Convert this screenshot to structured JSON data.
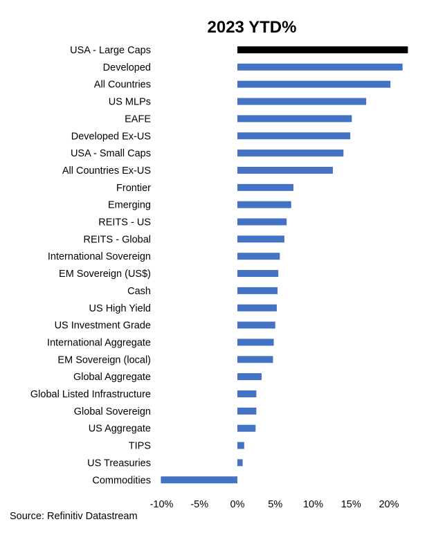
{
  "chart_data": {
    "type": "bar",
    "orientation": "horizontal",
    "title": "2023 YTD%",
    "categories": [
      "USA - Large Caps",
      "Developed",
      "All Countries",
      "US MLPs",
      "EAFE",
      "Developed Ex-US",
      "USA - Small Caps",
      "All Countries Ex-US",
      "Frontier",
      "Emerging",
      "REITS - US",
      "REITS - Global",
      "International Sovereign",
      "EM Sovereign (US$)",
      "Cash",
      "US High Yield",
      "US Investment Grade",
      "International Aggregate",
      "EM Sovereign (local)",
      "Global Aggregate",
      "Global Listed Infrastructure",
      "Global Sovereign",
      "US Aggregate",
      "TIPS",
      "US Treasuries",
      "Commodities"
    ],
    "values": [
      22.5,
      21.8,
      20.2,
      17.0,
      15.1,
      14.9,
      14.0,
      12.6,
      7.4,
      7.1,
      6.5,
      6.2,
      5.6,
      5.4,
      5.3,
      5.2,
      5.0,
      4.8,
      4.7,
      3.2,
      2.5,
      2.5,
      2.4,
      0.9,
      0.7,
      -10.1
    ],
    "highlight": {
      "category": "USA - Large Caps",
      "color": "#000000"
    },
    "colors": {
      "bar": "#4472C4",
      "highlight": "#000000"
    },
    "xlim": [
      -10,
      22.5
    ],
    "xticks": [
      -10,
      -5,
      0,
      5,
      10,
      15,
      20
    ],
    "xtick_labels": [
      "-10%",
      "-5%",
      "0%",
      "5%",
      "10%",
      "15%",
      "20%"
    ],
    "xlabel": "",
    "ylabel": "",
    "grid": false,
    "legend": "none"
  },
  "source": "Source:  Refinitiv Datastream"
}
